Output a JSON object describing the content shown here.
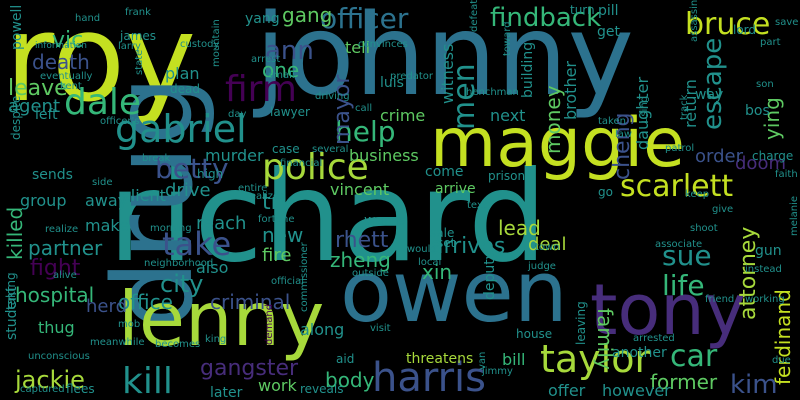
{
  "palette": {
    "lime": "#c4e021",
    "yellowgreen": "#a7d93b",
    "green": "#5ec962",
    "lightgreen": "#35b779",
    "teal": "#21918c",
    "tealblue": "#2c728e",
    "blue": "#3b528b",
    "indigo": "#472d7b",
    "darkpurple": "#440154"
  },
  "words": [
    "roy",
    "johnny",
    "richard",
    "drug",
    "maggie",
    "owen",
    "lenny",
    "tony",
    "police",
    "betty",
    "gabriel",
    "dale",
    "firm",
    "officer",
    "findback",
    "bruce",
    "ann",
    "one",
    "help",
    "harris",
    "taylor",
    "scarlett",
    "kill",
    "jackie",
    "car",
    "take",
    "sue",
    "life",
    "city",
    "office",
    "criminal",
    "gangster",
    "body",
    "rhett",
    "zheng",
    "xin",
    "family",
    "deal",
    "arrives",
    "partner",
    "fight",
    "hospital",
    "killed",
    "leave",
    "agent",
    "death",
    "vic",
    "gang",
    "mayor",
    "men",
    "cheng",
    "escape",
    "ying",
    "doom",
    "order",
    "attorney",
    "ferdinand",
    "kim",
    "former",
    "work",
    "later",
    "threatens",
    "bill",
    "offer",
    "however",
    "another",
    "lead",
    "new",
    "fire",
    "try",
    "drive",
    "client",
    "murder",
    "reach",
    "also",
    "herd",
    "thug",
    "student",
    "make",
    "away",
    "group",
    "sends",
    "eventually",
    "powell",
    "information",
    "left",
    "witness",
    "luis",
    "crime",
    "next",
    "money",
    "brother",
    "daughter",
    "return",
    "business",
    "arrive",
    "vincent",
    "along",
    "come",
    "prison",
    "building",
    "plan",
    "dead",
    "tell",
    "yang",
    "james",
    "turn",
    "pill",
    "get",
    "lord",
    "way",
    "bos",
    "charge",
    "faith",
    "save",
    "part",
    "assassin",
    "frank",
    "hand",
    "larry",
    "kent",
    "lawyer",
    "case",
    "several",
    "financial",
    "commissioner",
    "warns",
    "sale",
    "set",
    "deputy",
    "go",
    "patrol",
    "give",
    "gun",
    "instead",
    "associate",
    "shoot",
    "judge",
    "town",
    "local",
    "working",
    "friend",
    "mob",
    "king",
    "demand",
    "aid",
    "reveals",
    "van",
    "jimmy",
    "leaving",
    "arrested",
    "unconscious",
    "captured",
    "flees",
    "becomes",
    "visit",
    "house",
    "taken",
    "track",
    "using",
    "alive",
    "despite",
    "taking",
    "high",
    "entire",
    "realizes",
    "morning",
    "break",
    "day",
    "officer's",
    "state",
    "mountain",
    "small",
    "predator",
    "call",
    "convinces",
    "arrest",
    "defeat",
    "toward",
    "meanwhile",
    "due",
    "son",
    "keep",
    "side",
    "would",
    "outside",
    "official",
    "law",
    "melanie",
    "custody",
    "text",
    "neighborhood",
    "henchman",
    "realize",
    "fortune",
    "driving",
    "held",
    "nothing",
    "disc",
    "asks"
  ]
}
